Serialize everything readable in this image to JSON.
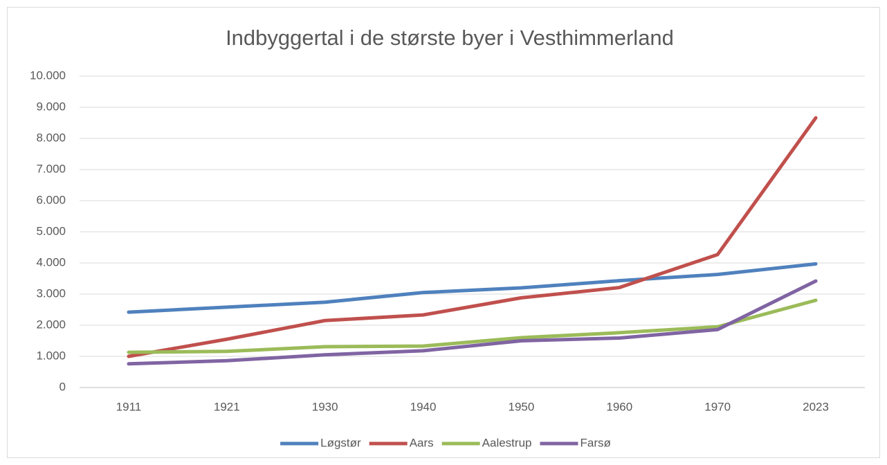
{
  "chart_data": {
    "type": "line",
    "title": "Indbyggertal i de største byer i Vesthimmerland",
    "categories": [
      "1911",
      "1921",
      "1930",
      "1940",
      "1950",
      "1960",
      "1970",
      "2023"
    ],
    "series": [
      {
        "name": "Løgstør",
        "color": "#4f81bd",
        "values": [
          2420,
          2580,
          2740,
          3050,
          3200,
          3430,
          3630,
          3970
        ]
      },
      {
        "name": "Aars",
        "color": "#c0504d",
        "values": [
          1000,
          1550,
          2150,
          2330,
          2880,
          3210,
          4270,
          8660
        ]
      },
      {
        "name": "Aalestrup",
        "color": "#9bbb59",
        "values": [
          1130,
          1160,
          1310,
          1330,
          1600,
          1760,
          1950,
          2800
        ]
      },
      {
        "name": "Farsø",
        "color": "#8064a2",
        "values": [
          760,
          860,
          1050,
          1180,
          1500,
          1590,
          1860,
          3420
        ]
      }
    ],
    "ylim": [
      0,
      10000
    ],
    "yticks": [
      0,
      {
        "value": 1000,
        "label": "1.000"
      },
      {
        "value": 2000,
        "label": "2.000"
      },
      {
        "value": 3000,
        "label": "3.000"
      },
      {
        "value": 4000,
        "label": "4.000"
      },
      {
        "value": 5000,
        "label": "5.000"
      },
      {
        "value": 6000,
        "label": "6.000"
      },
      {
        "value": 7000,
        "label": "7.000"
      },
      {
        "value": 8000,
        "label": "8.000"
      },
      {
        "value": 9000,
        "label": "9.000"
      },
      {
        "value": 10000,
        "label": "10.000"
      }
    ],
    "grid": true,
    "legend": "bottom"
  }
}
